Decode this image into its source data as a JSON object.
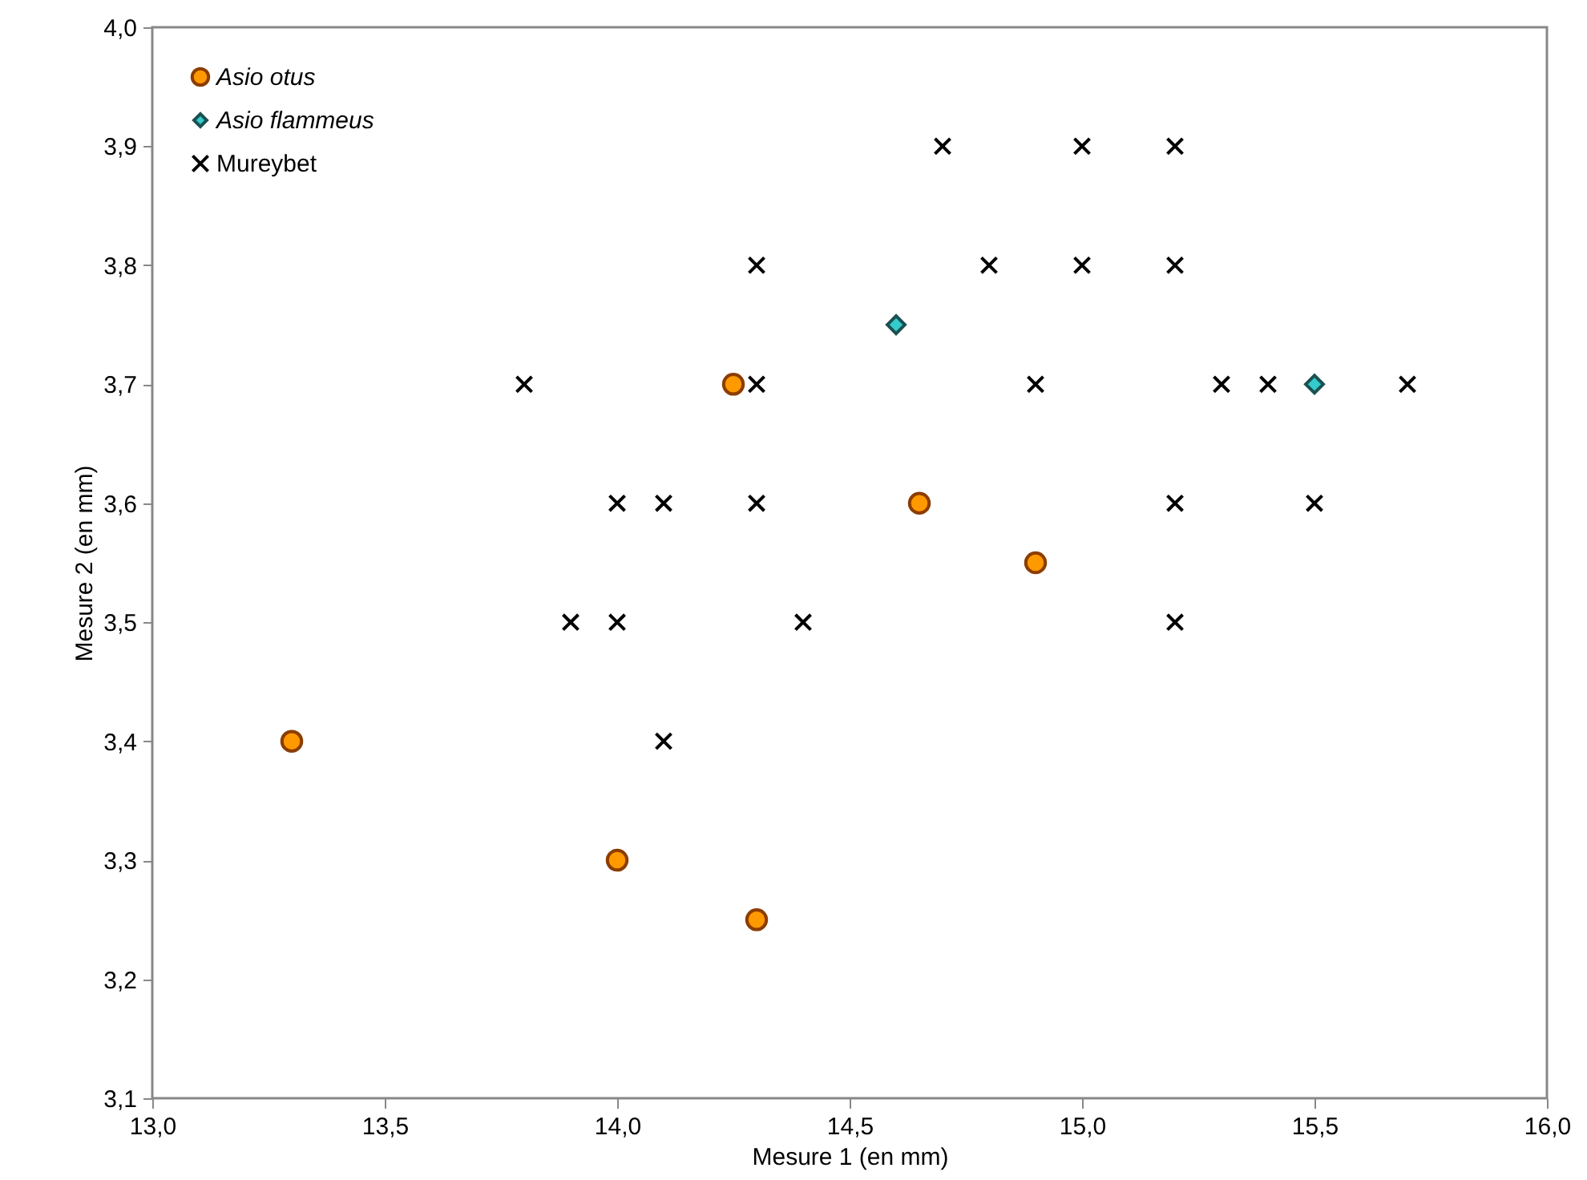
{
  "chart_data": {
    "type": "scatter",
    "xlabel": "Mesure 1 (en mm)",
    "ylabel": "Mesure 2 (en mm)",
    "xlim": [
      13.0,
      16.0
    ],
    "ylim": [
      3.1,
      4.0
    ],
    "xticks": [
      {
        "value": 13.0,
        "label": "13,0"
      },
      {
        "value": 13.5,
        "label": "13,5"
      },
      {
        "value": 14.0,
        "label": "14,0"
      },
      {
        "value": 14.5,
        "label": "14,5"
      },
      {
        "value": 15.0,
        "label": "15,0"
      },
      {
        "value": 15.5,
        "label": "15,5"
      },
      {
        "value": 16.0,
        "label": "16,0"
      }
    ],
    "yticks": [
      {
        "value": 3.1,
        "label": "3,1"
      },
      {
        "value": 3.2,
        "label": "3,2"
      },
      {
        "value": 3.3,
        "label": "3,3"
      },
      {
        "value": 3.4,
        "label": "3,4"
      },
      {
        "value": 3.5,
        "label": "3,5"
      },
      {
        "value": 3.6,
        "label": "3,6"
      },
      {
        "value": 3.7,
        "label": "3,7"
      },
      {
        "value": 3.8,
        "label": "3,8"
      },
      {
        "value": 3.9,
        "label": "3,9"
      },
      {
        "value": 4.0,
        "label": "4,0"
      }
    ],
    "grid": false,
    "legend": "top left",
    "series": [
      {
        "name": "Asio otus",
        "color": "#ff9900",
        "marker": "circle",
        "x": [
          13.3,
          14.0,
          14.3,
          14.25,
          14.65,
          14.9
        ],
        "values": [
          3.4,
          3.3,
          3.25,
          3.7,
          3.6,
          3.55
        ]
      },
      {
        "name": "Asio flammeus",
        "color": "#33cccc",
        "marker": "diamond",
        "x": [
          14.6,
          15.5
        ],
        "values": [
          3.75,
          3.7
        ]
      },
      {
        "name": "Mureybet",
        "color": "#000000",
        "marker": "cross",
        "x": [
          14.7,
          15.0,
          15.2,
          14.3,
          14.8,
          15.0,
          15.2,
          13.8,
          14.3,
          14.9,
          15.3,
          15.4,
          15.7,
          14.0,
          14.1,
          14.3,
          15.2,
          15.5,
          13.9,
          14.0,
          14.4,
          15.2,
          14.1
        ],
        "values": [
          3.9,
          3.9,
          3.9,
          3.8,
          3.8,
          3.8,
          3.8,
          3.7,
          3.7,
          3.7,
          3.7,
          3.7,
          3.7,
          3.6,
          3.6,
          3.6,
          3.6,
          3.6,
          3.5,
          3.5,
          3.5,
          3.5,
          3.4
        ]
      }
    ]
  }
}
